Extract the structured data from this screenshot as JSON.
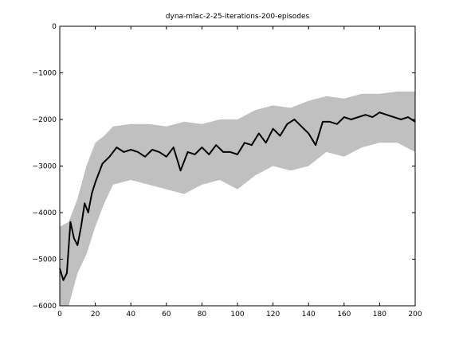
{
  "chart_data": {
    "type": "line",
    "title": "dyna-mlac-2-25-iterations-200-episodes",
    "xlabel": "",
    "ylabel": "",
    "xlim": [
      0,
      200
    ],
    "ylim": [
      -6000,
      0
    ],
    "x_ticks": [
      0,
      20,
      40,
      60,
      80,
      100,
      120,
      140,
      160,
      180,
      200
    ],
    "y_ticks": [
      0,
      -1000,
      -2000,
      -3000,
      -4000,
      -5000,
      -6000
    ],
    "x_tick_labels": [
      "0",
      "20",
      "40",
      "60",
      "80",
      "100",
      "120",
      "140",
      "160",
      "180",
      "200"
    ],
    "y_tick_labels": [
      "0",
      "−1000",
      "−2000",
      "−3000",
      "−4000",
      "−5000",
      "−6000"
    ],
    "grid": false,
    "colors": {
      "mean_line": "#000000",
      "band": "#c0c0c0"
    },
    "series": [
      {
        "role": "mean",
        "x": [
          0,
          2,
          4,
          6,
          8,
          10,
          12,
          14,
          16,
          18,
          20,
          24,
          28,
          32,
          36,
          40,
          44,
          48,
          52,
          56,
          60,
          64,
          68,
          72,
          76,
          80,
          84,
          88,
          92,
          96,
          100,
          104,
          108,
          112,
          116,
          120,
          124,
          128,
          132,
          136,
          140,
          144,
          148,
          152,
          156,
          160,
          164,
          168,
          172,
          176,
          180,
          184,
          188,
          192,
          196,
          200
        ],
        "y": [
          -5200,
          -5450,
          -5300,
          -4200,
          -4550,
          -4700,
          -4300,
          -3800,
          -4000,
          -3600,
          -3350,
          -2950,
          -2800,
          -2600,
          -2700,
          -2650,
          -2700,
          -2800,
          -2650,
          -2700,
          -2800,
          -2600,
          -3100,
          -2700,
          -2750,
          -2600,
          -2750,
          -2550,
          -2700,
          -2700,
          -2750,
          -2500,
          -2550,
          -2300,
          -2500,
          -2200,
          -2350,
          -2100,
          -2000,
          -2150,
          -2300,
          -2550,
          -2050,
          -2050,
          -2100,
          -1950,
          -2000,
          -1950,
          -1900,
          -1950,
          -1850,
          -1900,
          -1950,
          -2000,
          -1950,
          -2050
        ]
      },
      {
        "role": "upper-band",
        "x": [
          0,
          5,
          10,
          15,
          20,
          25,
          30,
          40,
          50,
          60,
          70,
          80,
          90,
          100,
          110,
          120,
          130,
          140,
          150,
          160,
          170,
          180,
          190,
          200
        ],
        "y": [
          -4300,
          -4200,
          -3700,
          -3000,
          -2500,
          -2350,
          -2150,
          -2100,
          -2100,
          -2150,
          -2050,
          -2100,
          -2000,
          -2000,
          -1800,
          -1700,
          -1750,
          -1600,
          -1500,
          -1550,
          -1450,
          -1450,
          -1400,
          -1400
        ]
      },
      {
        "role": "lower-band",
        "x": [
          0,
          5,
          10,
          15,
          20,
          25,
          30,
          40,
          50,
          60,
          70,
          80,
          90,
          100,
          110,
          120,
          130,
          140,
          150,
          160,
          170,
          180,
          190,
          200
        ],
        "y": [
          -6300,
          -6000,
          -5300,
          -4900,
          -4300,
          -3800,
          -3400,
          -3300,
          -3400,
          -3500,
          -3600,
          -3400,
          -3300,
          -3500,
          -3200,
          -3000,
          -3100,
          -3000,
          -2700,
          -2800,
          -2600,
          -2500,
          -2500,
          -2700
        ]
      }
    ]
  }
}
